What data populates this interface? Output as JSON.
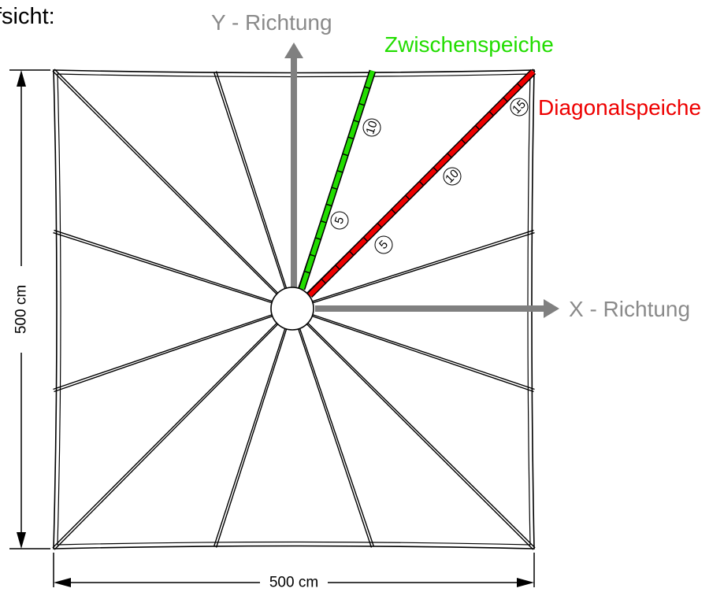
{
  "heading": "fsicht:",
  "axes": {
    "y_label": "Y - Richtung",
    "x_label": "X - Richtung",
    "color": "#808080"
  },
  "spokes": {
    "intermediate": {
      "label": "Zwischenspeiche",
      "color": "#22dd00",
      "node_numbers": [
        "5",
        "10"
      ]
    },
    "diagonal": {
      "label": "Diagonalspeiche",
      "color": "#ee0000",
      "node_numbers": [
        "5",
        "10",
        "15"
      ]
    }
  },
  "dimensions": {
    "width": "500 cm",
    "height": "500 cm"
  }
}
